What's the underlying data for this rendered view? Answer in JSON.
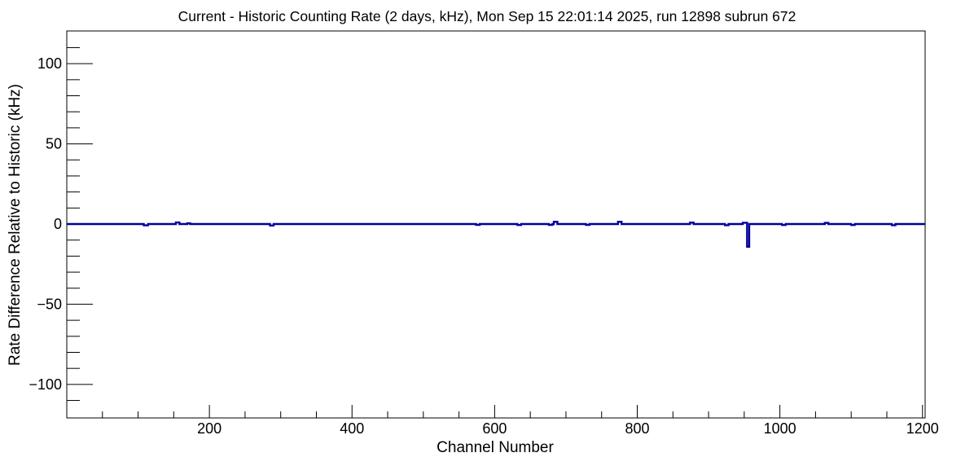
{
  "chart_data": {
    "type": "line",
    "style": "root-histogram-step",
    "title": "Current - Historic Counting Rate (2 days, kHz), Mon Sep 15 22:01:14 2025, run 12898 subrun 672",
    "xlabel": "Channel Number",
    "ylabel": "Rate Difference Relative to Historic (kHz)",
    "xlim": [
      0,
      1203.7
    ],
    "ylim": [
      -120.9,
      120.4
    ],
    "grid": false,
    "legend": false,
    "x_ticks": {
      "values": [
        200,
        400,
        600,
        800,
        1000,
        1200
      ],
      "labels": [
        "200",
        "400",
        "600",
        "800",
        "1000",
        "1200"
      ],
      "minor_step": 50
    },
    "y_ticks": {
      "values": [
        100,
        50,
        0,
        -50,
        -100
      ],
      "labels": [
        "100",
        "50",
        "0",
        "−50",
        "−100"
      ],
      "minor_step": 10
    },
    "baseline_value": 0,
    "anomalies": [
      {
        "from": 108,
        "to": 114,
        "value": -0.8
      },
      {
        "from": 153,
        "to": 158,
        "value": 1.0
      },
      {
        "from": 169,
        "to": 173,
        "value": 0.5
      },
      {
        "from": 285,
        "to": 290,
        "value": -0.9
      },
      {
        "from": 574,
        "to": 579,
        "value": -0.5
      },
      {
        "from": 632,
        "to": 637,
        "value": -0.6
      },
      {
        "from": 676,
        "to": 681,
        "value": -0.5
      },
      {
        "from": 683,
        "to": 688,
        "value": 1.4
      },
      {
        "from": 728,
        "to": 733,
        "value": -0.5
      },
      {
        "from": 773,
        "to": 778,
        "value": 1.4
      },
      {
        "from": 874,
        "to": 879,
        "value": 0.9
      },
      {
        "from": 923,
        "to": 928,
        "value": -0.7
      },
      {
        "from": 948,
        "to": 954,
        "value": 0.8
      },
      {
        "from": 954,
        "to": 957,
        "value": -14.2
      },
      {
        "from": 1003,
        "to": 1008,
        "value": -0.6
      },
      {
        "from": 1063,
        "to": 1068,
        "value": 0.7
      },
      {
        "from": 1100,
        "to": 1105,
        "value": -0.6
      },
      {
        "from": 1157,
        "to": 1162,
        "value": -0.7
      }
    ],
    "colors": {
      "line": "#00009a",
      "frame": "#000000",
      "background": "#ffffff",
      "text": "#000000"
    }
  }
}
